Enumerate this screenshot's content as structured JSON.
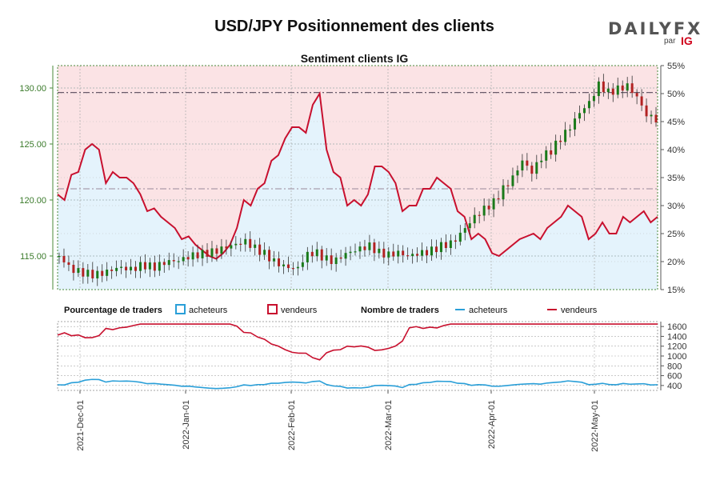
{
  "title": "USD/JPY Positionnement des clients",
  "subtitle": "Sentiment clients IG",
  "logo": {
    "word": "DAILYFX",
    "by": "par",
    "brand": "IG"
  },
  "legend": {
    "pct_heading": "Pourcentage de traders",
    "count_heading": "Nombre de traders",
    "buyers": "acheteurs",
    "sellers": "vendeurs"
  },
  "colors": {
    "buyers": "#2a9fd8",
    "sellers": "#c8102e",
    "up": "#1a7a1a",
    "down": "#b22222",
    "buyers_fill": "#e4f3fc",
    "sellers_fill": "#fbe3e5"
  },
  "chart_data": [
    {
      "type": "candlestick",
      "name": "price",
      "ylim": [
        112,
        132
      ],
      "yticks": [
        115,
        120,
        125,
        130
      ],
      "ytick_labels": [
        "115.00",
        "120.00",
        "125.00",
        "130.00"
      ],
      "reference_line": 129.6,
      "reference_line_2": 121.0,
      "dates": [
        "2021-11-24",
        "2022-05-26"
      ],
      "close_path_anchors": [
        [
          0,
          115.0
        ],
        [
          5,
          113.8
        ],
        [
          10,
          113.5
        ],
        [
          15,
          113.3
        ],
        [
          20,
          113.6
        ],
        [
          25,
          114.0
        ],
        [
          30,
          113.8
        ],
        [
          35,
          114.2
        ],
        [
          40,
          114.0
        ],
        [
          45,
          114.5
        ],
        [
          50,
          114.6
        ],
        [
          55,
          115.0
        ],
        [
          60,
          115.2
        ],
        [
          65,
          115.4
        ],
        [
          70,
          115.8
        ],
        [
          75,
          116.1
        ],
        [
          78,
          116.3
        ],
        [
          82,
          115.7
        ],
        [
          86,
          115.2
        ],
        [
          90,
          114.5
        ],
        [
          95,
          114.0
        ],
        [
          100,
          113.9
        ],
        [
          103,
          115.0
        ],
        [
          107,
          115.4
        ],
        [
          111,
          114.8
        ],
        [
          115,
          114.5
        ],
        [
          120,
          115.2
        ],
        [
          125,
          115.6
        ],
        [
          130,
          115.9
        ],
        [
          134,
          115.3
        ],
        [
          138,
          115.1
        ],
        [
          142,
          115.3
        ],
        [
          146,
          115.0
        ],
        [
          150,
          115.2
        ],
        [
          155,
          115.4
        ],
        [
          160,
          115.9
        ],
        [
          165,
          116.2
        ],
        [
          170,
          117.5
        ],
        [
          174,
          118.5
        ],
        [
          178,
          119.2
        ],
        [
          182,
          119.8
        ],
        [
          186,
          121.0
        ],
        [
          190,
          122.0
        ],
        [
          194,
          123.5
        ],
        [
          198,
          122.5
        ],
        [
          202,
          123.8
        ],
        [
          206,
          124.4
        ],
        [
          210,
          125.5
        ],
        [
          214,
          126.5
        ],
        [
          218,
          127.8
        ],
        [
          222,
          128.7
        ],
        [
          226,
          130.3
        ],
        [
          230,
          129.6
        ],
        [
          234,
          129.9
        ],
        [
          238,
          130.2
        ],
        [
          242,
          129.2
        ],
        [
          246,
          127.6
        ],
        [
          250,
          127.2
        ]
      ],
      "yrange_right": [
        15,
        55
      ],
      "ytick_right": [
        "15%",
        "20%",
        "25%",
        "30%",
        "35%",
        "40%",
        "45%",
        "50%",
        "55%"
      ]
    },
    {
      "type": "area",
      "name": "buyers_pct",
      "series_note_values": [
        32,
        31,
        35.5,
        36,
        40,
        41,
        40,
        34,
        36,
        35,
        35,
        34,
        32,
        29,
        29.5,
        28,
        27,
        26,
        24,
        24.5,
        23,
        22,
        21,
        20.5,
        21.5,
        23,
        26,
        31,
        30,
        33,
        34,
        38,
        39,
        42,
        44,
        44,
        43,
        48,
        50,
        40,
        36,
        35,
        30,
        31,
        30,
        32,
        37,
        37,
        36,
        34,
        29,
        30,
        30,
        33,
        33,
        35,
        34,
        33,
        29,
        28,
        24,
        25,
        24,
        21.5,
        21,
        22,
        23,
        24,
        24.5,
        25,
        24,
        26,
        27,
        28,
        30,
        29,
        28,
        24,
        25,
        27,
        25,
        25,
        28,
        27,
        28,
        29,
        27,
        28
      ]
    },
    {
      "type": "line",
      "name": "trader_counts",
      "ylim": [
        300,
        1700
      ],
      "yticks": [
        400,
        600,
        800,
        1000,
        1200,
        1400,
        1600
      ],
      "xticks": [
        "2021-Dec-01",
        "2022-Jan-01",
        "2022-Feb-01",
        "2022-Mar-01",
        "2022-Apr-01",
        "2022-May-01"
      ]
    }
  ]
}
